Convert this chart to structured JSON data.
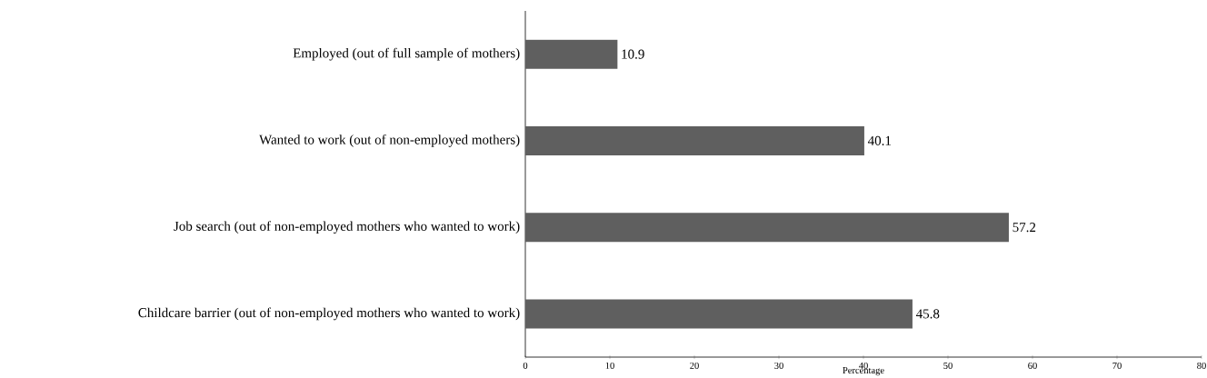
{
  "chart_data": {
    "type": "bar",
    "orientation": "horizontal",
    "xlabel": "Percentage",
    "categories": [
      "Employed (out of full sample of mothers)",
      "Wanted to work  (out of non-employed mothers)",
      "Job search (out of non-employed mothers who wanted to work)",
      "Childcare barrier (out of non-employed mothers who wanted to work)"
    ],
    "values": [
      10.9,
      40.1,
      57.2,
      45.8
    ],
    "color": "#5f5f5f",
    "xlim": [
      0,
      80
    ],
    "xticks": [
      0,
      10,
      20,
      30,
      40,
      50,
      60,
      70,
      80
    ],
    "data_labels": true
  }
}
